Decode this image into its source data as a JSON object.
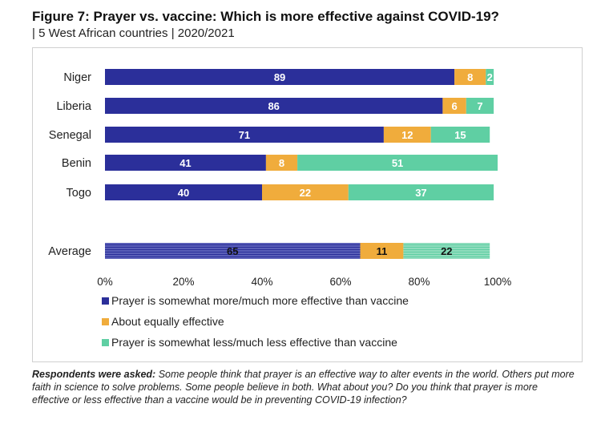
{
  "title": "Figure 7: Prayer vs. vaccine: Which is more effective against COVID-19?",
  "subtitle": "| 5 West African countries | 2020/2021",
  "note": {
    "label": "Respondents were asked:",
    "text": "Some people think that prayer is an effective way to alter events in the world. Others put more faith in science to solve problems. Some people believe in both. What about you? Do you think that prayer is more effective or less effective than a vaccine would be in preventing COVID-19 infection?"
  },
  "chart_data": {
    "type": "bar",
    "orientation": "horizontal",
    "stacked": true,
    "categories": [
      "Niger",
      "Liberia",
      "Senegal",
      "Benin",
      "Togo",
      "Average"
    ],
    "series": [
      {
        "name": "Prayer is somewhat more/much more effective than vaccine",
        "color": "#2b2f9a",
        "values": [
          89,
          86,
          71,
          41,
          40,
          65
        ]
      },
      {
        "name": "About equally effective",
        "color": "#f0ac3c",
        "values": [
          8,
          6,
          12,
          8,
          22,
          11
        ]
      },
      {
        "name": "Prayer is somewhat less/much less effective than vaccine",
        "color": "#5fcfa3",
        "values": [
          2,
          7,
          15,
          51,
          37,
          22
        ]
      }
    ],
    "xlim": [
      0,
      100
    ],
    "x_ticks": [
      "0%",
      "20%",
      "40%",
      "60%",
      "80%",
      "100%"
    ],
    "highlighted_category": "Average",
    "grid": false,
    "legend_position": "bottom"
  }
}
